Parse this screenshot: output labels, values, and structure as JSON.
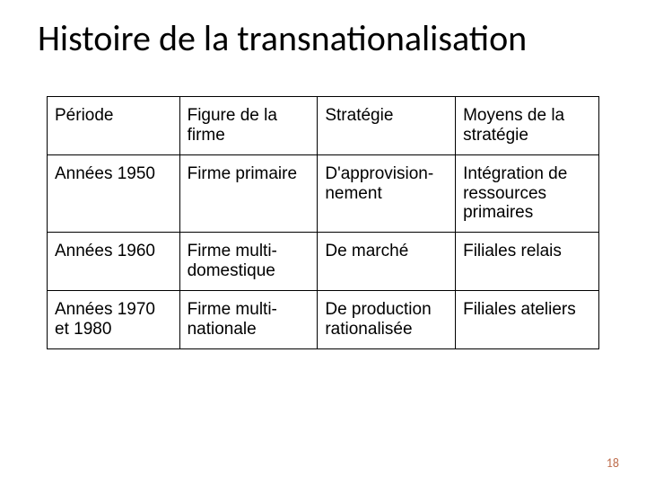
{
  "title": "Histoire de la transnationalisation",
  "table": {
    "columns": [
      "Période",
      "Figure de la firme",
      "Stratégie",
      "Moyens de la stratégie"
    ],
    "rows": [
      [
        "Années 1950",
        "Firme primaire",
        "D'approvision-nement",
        "Intégration de ressources primaires"
      ],
      [
        "Années 1960",
        "Firme multi-domestique",
        "De marché",
        "Filiales relais"
      ],
      [
        "Années 1970 et 1980",
        "Firme multi-nationale",
        "De production rationalisée",
        "Filiales ateliers"
      ]
    ],
    "col_widths_pct": [
      24,
      25,
      25,
      26
    ],
    "border_color": "#000000",
    "cell_fontsize": 19,
    "cell_font": "Arial",
    "text_color": "#000000"
  },
  "page_number": "18",
  "page_number_color": "#bf6f4f",
  "title_fontsize": 40,
  "title_font": "Calibri",
  "background_color": "#ffffff"
}
